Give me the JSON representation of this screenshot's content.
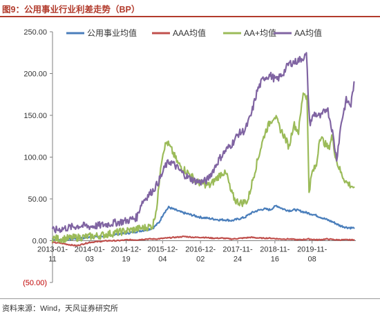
{
  "figure_title": "图9：公用事业行业利差走势（BP）",
  "source_note": "资料来源：Wind，天风证券研究所",
  "colors": {
    "accent": "#b23a2b"
  },
  "chart_data": {
    "type": "line",
    "title": "",
    "xlabel": "",
    "ylabel": "",
    "ylim": [
      -50,
      250
    ],
    "yticks": [
      -50,
      0,
      50,
      100,
      150,
      200,
      250
    ],
    "ytick_labels": [
      "(50.00)",
      "0.00",
      "50.00",
      "100.00",
      "150.00",
      "200.00",
      "250.00"
    ],
    "xlim": [
      "2013-01-11",
      "2021-01-01"
    ],
    "xtick_labels": [
      {
        "date": "2013-01-11",
        "line1": "2013-01-",
        "line2": "11"
      },
      {
        "date": "2014-01-03",
        "line1": "2014-01-",
        "line2": "03"
      },
      {
        "date": "2014-12-19",
        "line1": "2014-12-",
        "line2": "19"
      },
      {
        "date": "2015-12-04",
        "line1": "2015-12-",
        "line2": "04"
      },
      {
        "date": "2016-12-02",
        "line1": "2016-12-",
        "line2": "02"
      },
      {
        "date": "2017-11-24",
        "line1": "2017-11-",
        "line2": "24"
      },
      {
        "date": "2018-11-16",
        "line1": "2018-11-",
        "line2": "16"
      },
      {
        "date": "2019-11-08",
        "line1": "2019-11-",
        "line2": "08"
      }
    ],
    "grid": false,
    "legend_position": "top",
    "series": [
      {
        "name": "公用事业均值",
        "color": "#4a7ebb",
        "points": [
          [
            "2013-01-11",
            2
          ],
          [
            "2013-04-01",
            1
          ],
          [
            "2013-07-01",
            2
          ],
          [
            "2013-10-01",
            3
          ],
          [
            "2014-01-01",
            4
          ],
          [
            "2014-04-01",
            5
          ],
          [
            "2014-07-01",
            6
          ],
          [
            "2014-10-01",
            8
          ],
          [
            "2015-01-01",
            9
          ],
          [
            "2015-04-01",
            11
          ],
          [
            "2015-07-01",
            13
          ],
          [
            "2015-09-01",
            15
          ],
          [
            "2015-11-01",
            22
          ],
          [
            "2015-12-15",
            33
          ],
          [
            "2016-02-01",
            40
          ],
          [
            "2016-04-01",
            37
          ],
          [
            "2016-06-01",
            34
          ],
          [
            "2016-08-01",
            32
          ],
          [
            "2016-10-01",
            30
          ],
          [
            "2016-12-01",
            28
          ],
          [
            "2017-02-01",
            27
          ],
          [
            "2017-04-01",
            26
          ],
          [
            "2017-06-01",
            25
          ],
          [
            "2017-08-01",
            25
          ],
          [
            "2017-10-01",
            24
          ],
          [
            "2017-12-01",
            26
          ],
          [
            "2018-02-01",
            28
          ],
          [
            "2018-04-01",
            33
          ],
          [
            "2018-06-01",
            36
          ],
          [
            "2018-08-01",
            38
          ],
          [
            "2018-10-01",
            37
          ],
          [
            "2018-12-01",
            42
          ],
          [
            "2019-02-01",
            38
          ],
          [
            "2019-04-01",
            36
          ],
          [
            "2019-06-01",
            37
          ],
          [
            "2019-08-01",
            35
          ],
          [
            "2019-10-01",
            33
          ],
          [
            "2019-12-01",
            31
          ],
          [
            "2020-02-01",
            28
          ],
          [
            "2020-04-01",
            25
          ],
          [
            "2020-06-01",
            22
          ],
          [
            "2020-08-01",
            18
          ],
          [
            "2020-10-01",
            16
          ],
          [
            "2020-12-15",
            15
          ]
        ]
      },
      {
        "name": "AAA均值",
        "color": "#c0504d",
        "points": [
          [
            "2013-01-11",
            -2
          ],
          [
            "2013-04-01",
            -3
          ],
          [
            "2013-07-01",
            -5
          ],
          [
            "2013-09-01",
            -6
          ],
          [
            "2013-11-01",
            -4
          ],
          [
            "2014-01-01",
            -2
          ],
          [
            "2014-04-01",
            -1
          ],
          [
            "2014-07-01",
            0
          ],
          [
            "2014-10-01",
            0
          ],
          [
            "2015-01-01",
            1
          ],
          [
            "2015-04-01",
            1
          ],
          [
            "2015-07-01",
            2
          ],
          [
            "2015-10-01",
            2
          ],
          [
            "2016-01-01",
            3
          ],
          [
            "2016-04-01",
            4
          ],
          [
            "2016-07-01",
            5
          ],
          [
            "2016-10-01",
            4
          ],
          [
            "2017-01-01",
            4
          ],
          [
            "2017-04-01",
            3
          ],
          [
            "2017-07-01",
            3
          ],
          [
            "2017-10-01",
            2
          ],
          [
            "2018-01-01",
            3
          ],
          [
            "2018-04-01",
            4
          ],
          [
            "2018-07-01",
            3
          ],
          [
            "2018-10-01",
            3
          ],
          [
            "2019-01-01",
            2
          ],
          [
            "2019-04-01",
            2
          ],
          [
            "2019-07-01",
            1
          ],
          [
            "2019-10-01",
            2
          ],
          [
            "2020-01-01",
            1
          ],
          [
            "2020-04-01",
            2
          ],
          [
            "2020-07-01",
            1
          ],
          [
            "2020-10-01",
            1
          ],
          [
            "2020-12-15",
            1
          ]
        ]
      },
      {
        "name": "AA+均值",
        "color": "#9bbb59",
        "points": [
          [
            "2013-01-11",
            3
          ],
          [
            "2013-04-01",
            2
          ],
          [
            "2013-07-01",
            3
          ],
          [
            "2013-10-01",
            4
          ],
          [
            "2014-01-01",
            5
          ],
          [
            "2014-04-01",
            6
          ],
          [
            "2014-07-01",
            8
          ],
          [
            "2014-10-01",
            10
          ],
          [
            "2015-01-01",
            12
          ],
          [
            "2015-04-01",
            14
          ],
          [
            "2015-07-01",
            16
          ],
          [
            "2015-09-01",
            18
          ],
          [
            "2015-10-15",
            45
          ],
          [
            "2015-11-15",
            90
          ],
          [
            "2015-12-15",
            110
          ],
          [
            "2016-01-15",
            118
          ],
          [
            "2016-03-01",
            108
          ],
          [
            "2016-05-01",
            92
          ],
          [
            "2016-07-01",
            85
          ],
          [
            "2016-09-01",
            78
          ],
          [
            "2016-11-01",
            70
          ],
          [
            "2017-01-01",
            68
          ],
          [
            "2017-03-01",
            66
          ],
          [
            "2017-05-01",
            74
          ],
          [
            "2017-07-01",
            82
          ],
          [
            "2017-08-15",
            78
          ],
          [
            "2017-09-15",
            60
          ],
          [
            "2017-11-01",
            48
          ],
          [
            "2018-01-01",
            45
          ],
          [
            "2018-03-01",
            48
          ],
          [
            "2018-05-01",
            80
          ],
          [
            "2018-07-01",
            110
          ],
          [
            "2018-08-15",
            130
          ],
          [
            "2018-10-01",
            142
          ],
          [
            "2018-11-15",
            150
          ],
          [
            "2019-01-01",
            135
          ],
          [
            "2019-02-15",
            125
          ],
          [
            "2019-04-01",
            112
          ],
          [
            "2019-05-15",
            140
          ],
          [
            "2019-07-01",
            130
          ],
          [
            "2019-08-15",
            178
          ],
          [
            "2019-09-20",
            172
          ],
          [
            "2019-10-10",
            60
          ],
          [
            "2019-11-10",
            82
          ],
          [
            "2019-12-20",
            90
          ],
          [
            "2020-01-20",
            125
          ],
          [
            "2020-03-01",
            118
          ],
          [
            "2020-04-15",
            110
          ],
          [
            "2020-05-15",
            125
          ],
          [
            "2020-07-01",
            95
          ],
          [
            "2020-08-15",
            80
          ],
          [
            "2020-10-01",
            70
          ],
          [
            "2020-11-15",
            66
          ],
          [
            "2020-12-15",
            64
          ]
        ]
      },
      {
        "name": "AA均值",
        "color": "#8064a2",
        "points": [
          [
            "2013-01-11",
            12
          ],
          [
            "2013-04-01",
            14
          ],
          [
            "2013-07-01",
            16
          ],
          [
            "2013-10-01",
            18
          ],
          [
            "2014-01-01",
            17
          ],
          [
            "2014-04-01",
            18
          ],
          [
            "2014-07-01",
            20
          ],
          [
            "2014-10-01",
            22
          ],
          [
            "2015-01-01",
            24
          ],
          [
            "2015-04-01",
            28
          ],
          [
            "2015-05-15",
            45
          ],
          [
            "2015-07-01",
            52
          ],
          [
            "2015-09-01",
            60
          ],
          [
            "2015-10-15",
            68
          ],
          [
            "2015-12-01",
            80
          ],
          [
            "2016-01-01",
            90
          ],
          [
            "2016-02-15",
            95
          ],
          [
            "2016-04-01",
            90
          ],
          [
            "2016-06-01",
            82
          ],
          [
            "2016-08-01",
            76
          ],
          [
            "2016-10-01",
            72
          ],
          [
            "2016-12-01",
            70
          ],
          [
            "2017-02-01",
            72
          ],
          [
            "2017-04-01",
            84
          ],
          [
            "2017-06-01",
            98
          ],
          [
            "2017-08-01",
            108
          ],
          [
            "2017-10-01",
            116
          ],
          [
            "2017-12-01",
            128
          ],
          [
            "2018-02-01",
            132
          ],
          [
            "2018-04-01",
            150
          ],
          [
            "2018-06-01",
            180
          ],
          [
            "2018-08-01",
            195
          ],
          [
            "2018-10-01",
            198
          ],
          [
            "2018-12-01",
            192
          ],
          [
            "2019-02-01",
            200
          ],
          [
            "2019-04-01",
            212
          ],
          [
            "2019-06-01",
            214
          ],
          [
            "2019-08-01",
            218
          ],
          [
            "2019-09-15",
            222
          ],
          [
            "2019-10-15",
            140
          ],
          [
            "2019-12-01",
            152
          ],
          [
            "2020-02-01",
            148
          ],
          [
            "2020-04-01",
            160
          ],
          [
            "2020-05-15",
            135
          ],
          [
            "2020-07-01",
            98
          ],
          [
            "2020-08-15",
            142
          ],
          [
            "2020-10-01",
            168
          ],
          [
            "2020-11-15",
            162
          ],
          [
            "2020-12-15",
            190
          ]
        ]
      }
    ]
  }
}
